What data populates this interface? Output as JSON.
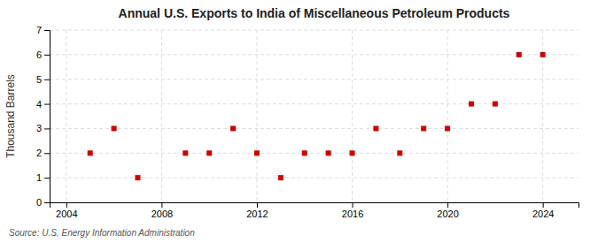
{
  "chart_data": {
    "type": "scatter",
    "title": "Annual U.S. Exports to India of Miscellaneous Petroleum Products",
    "ylabel": "Thousand Barrels",
    "source": "Source: U.S. Energy Information Administration",
    "x": [
      2005,
      2006,
      2007,
      2009,
      2010,
      2011,
      2012,
      2013,
      2014,
      2015,
      2016,
      2017,
      2018,
      2019,
      2020,
      2021,
      2022,
      2023,
      2024
    ],
    "values": [
      2,
      3,
      1,
      2,
      2,
      3,
      2,
      1,
      2,
      2,
      2,
      3,
      2,
      3,
      3,
      4,
      4,
      6,
      6
    ],
    "color": "#cc0000",
    "marker": "square",
    "xlim": [
      2003.3,
      2025.5
    ],
    "ylim": [
      0,
      7
    ],
    "xticks": [
      2004,
      2008,
      2012,
      2016,
      2020,
      2024
    ],
    "yticks": [
      0,
      1,
      2,
      3,
      4,
      5,
      6,
      7
    ],
    "grid": true
  }
}
